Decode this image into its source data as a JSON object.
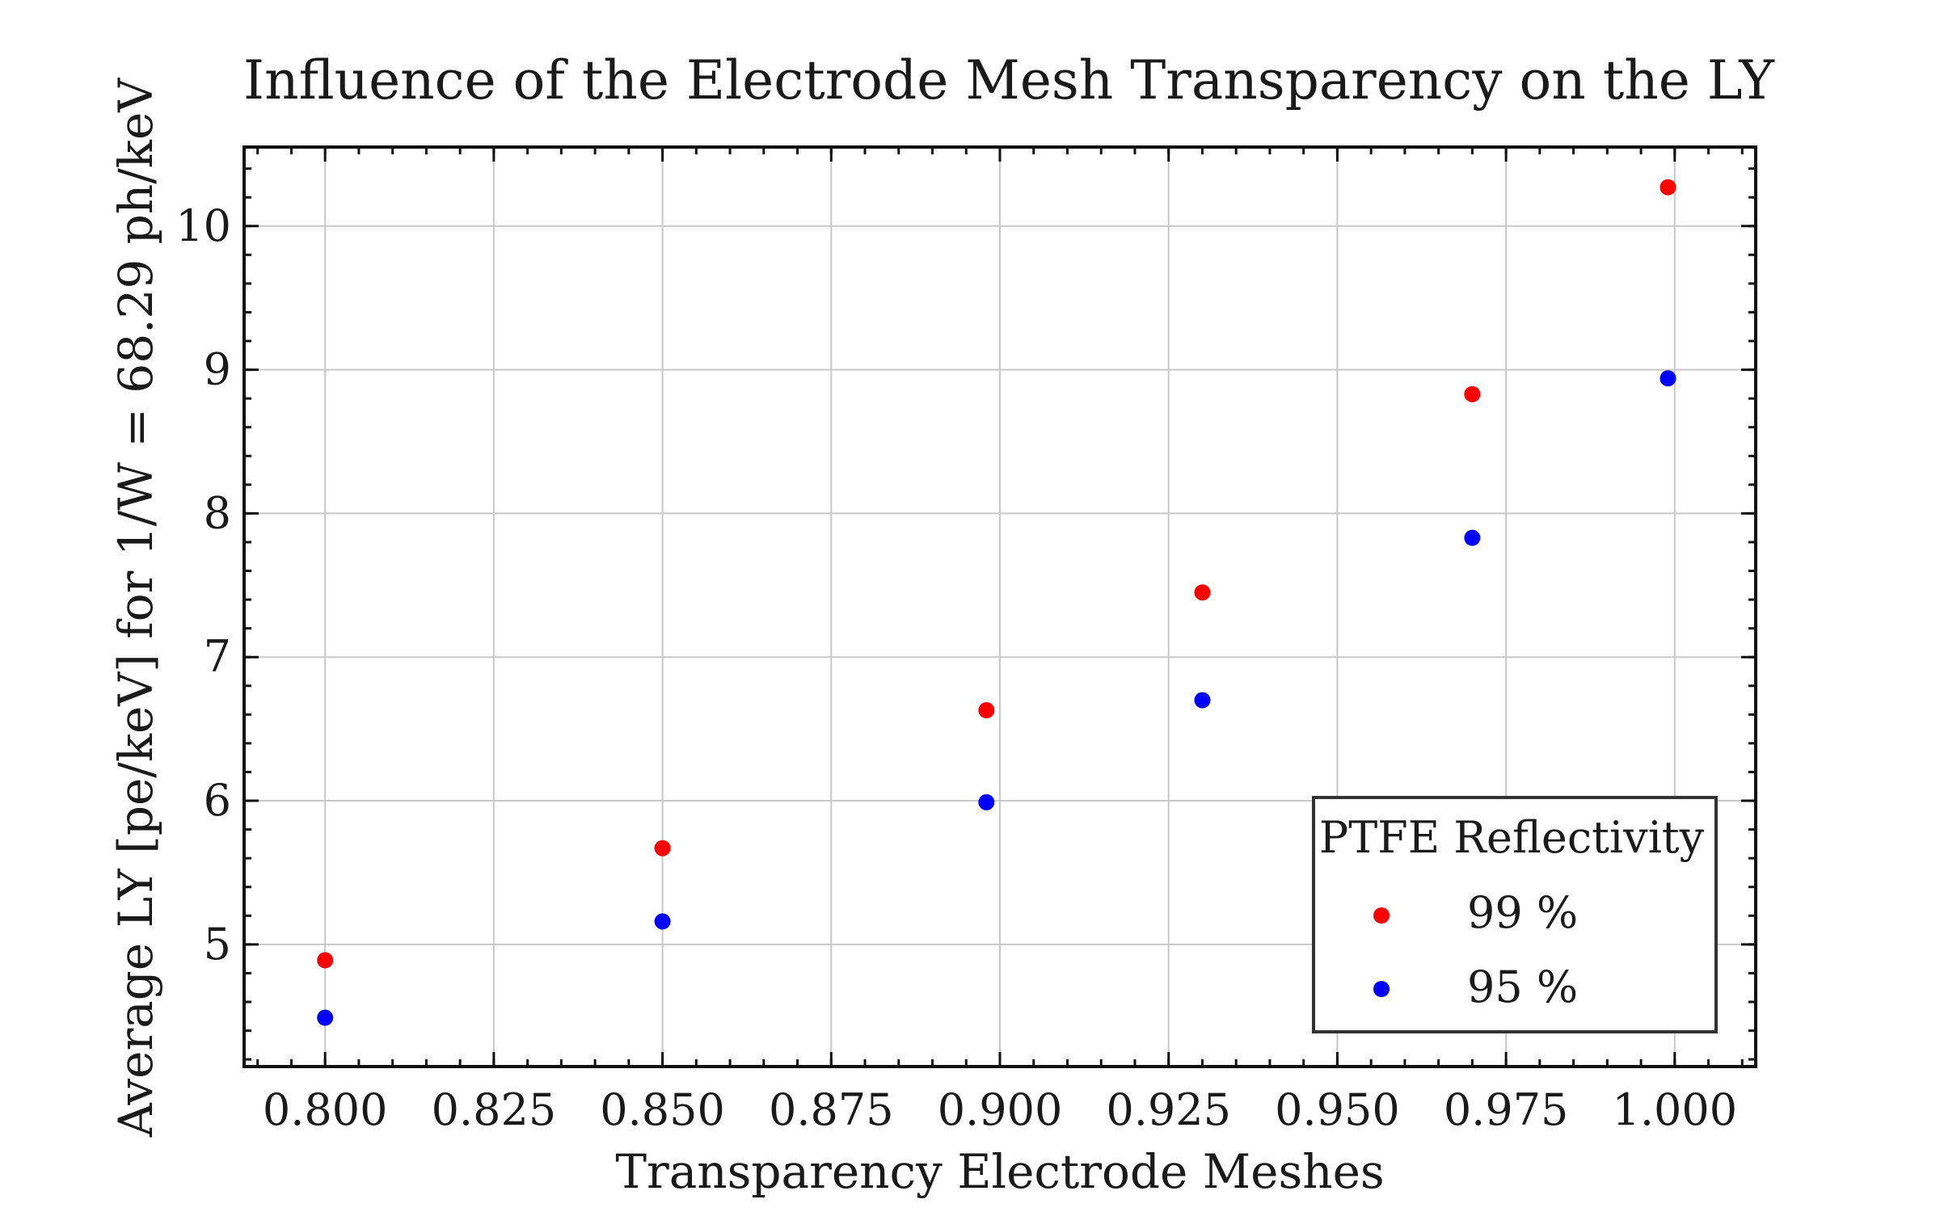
{
  "chart_data": {
    "type": "scatter",
    "title": "Influence of the Electrode Mesh Transparency on the LY",
    "xlabel": "Transparency Electrode Meshes",
    "ylabel": "Average LY [pe/keV] for 1/W = 68.29 ph/keV",
    "xlim": [
      0.788,
      1.012
    ],
    "ylim": [
      4.15,
      10.55
    ],
    "x_ticks": [
      "0.800",
      "0.825",
      "0.850",
      "0.875",
      "0.900",
      "0.925",
      "0.950",
      "0.975",
      "1.000"
    ],
    "y_ticks": [
      "5",
      "6",
      "7",
      "8",
      "9",
      "10"
    ],
    "grid": true,
    "legend_placement": "lower right",
    "legend_title": "PTFE Reflectivity",
    "series": [
      {
        "name": "99 %",
        "color": "#ff0000",
        "x": [
          0.8,
          0.85,
          0.898,
          0.93,
          0.97,
          0.999
        ],
        "y": [
          4.89,
          5.67,
          6.63,
          7.45,
          8.83,
          10.27
        ]
      },
      {
        "name": "95 %",
        "color": "#0000ff",
        "x": [
          0.8,
          0.85,
          0.898,
          0.93,
          0.97,
          0.999
        ],
        "y": [
          4.49,
          5.16,
          5.99,
          6.7,
          7.83,
          8.94
        ]
      }
    ]
  }
}
